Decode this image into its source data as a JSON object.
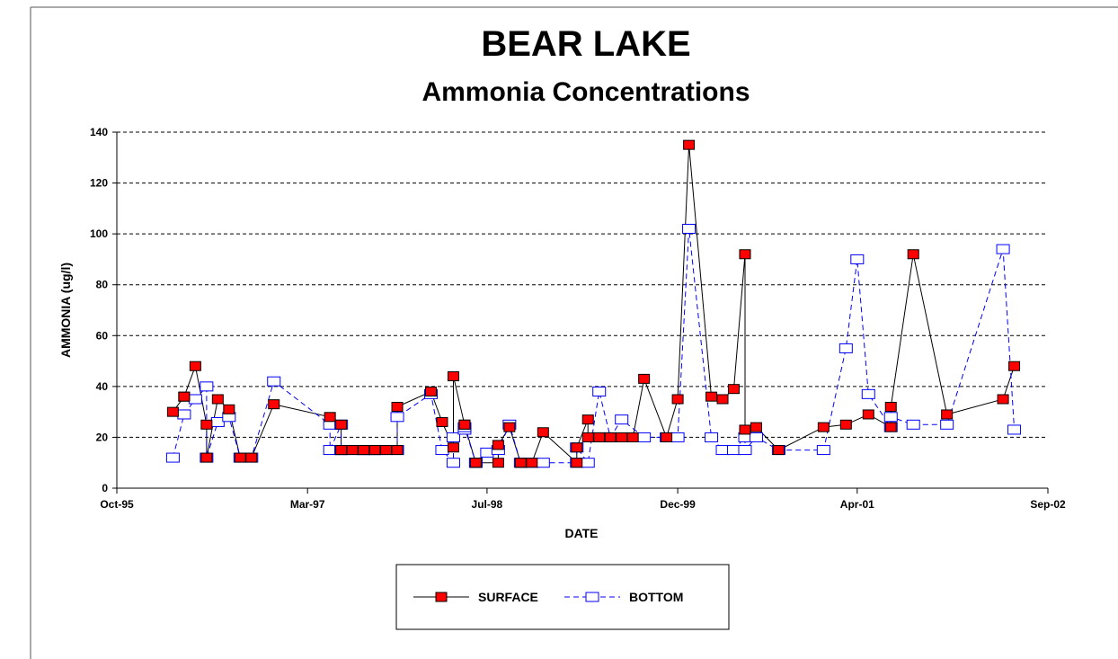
{
  "chart_data": {
    "type": "line",
    "title": "BEAR LAKE",
    "subtitle": "Ammonia Concentrations",
    "x_label": "DATE",
    "y_label": "AMMONIA (ug/l)",
    "xlim": [
      "1995-10",
      "2002-09"
    ],
    "xticks": [
      {
        "value": "1995-10",
        "label": "Oct-95"
      },
      {
        "value": "1997-03",
        "label": "Mar-97"
      },
      {
        "value": "1998-07",
        "label": "Jul-98"
      },
      {
        "value": "1999-12",
        "label": "Dec-99"
      },
      {
        "value": "2001-04",
        "label": "Apr-01"
      },
      {
        "value": "2002-09",
        "label": "Sep-02"
      }
    ],
    "ylim": [
      0,
      140
    ],
    "yticks": [
      0,
      20,
      40,
      60,
      80,
      100,
      120,
      140
    ],
    "grid": true,
    "legend": "bottom",
    "series": [
      {
        "name": "SURFACE",
        "color": "#ff0000",
        "style": "solid",
        "x": [
          "1996-03",
          "1996-04",
          "1996-04",
          "1996-05",
          "1996-06",
          "1996-06",
          "1996-07",
          "1996-08",
          "1996-09",
          "1996-10",
          "1996-12",
          "1997-05",
          "1997-06",
          "1997-06",
          "1997-06",
          "1997-07",
          "1997-08",
          "1997-08",
          "1997-09",
          "1997-09",
          "1997-10",
          "1997-11",
          "1997-11",
          "1998-02",
          "1998-03",
          "1998-04",
          "1998-04",
          "1998-05",
          "1998-05",
          "1998-06",
          "1998-06",
          "1998-08",
          "1998-08",
          "1998-09",
          "1998-10",
          "1998-10",
          "1998-11",
          "1998-12",
          "1999-03",
          "1999-03",
          "1999-04",
          "1999-04",
          "1999-05",
          "1999-05",
          "1999-06",
          "1999-07",
          "1999-08",
          "1999-09",
          "1999-11",
          "1999-12",
          "2000-01",
          "2000-03",
          "2000-04",
          "2000-05",
          "2000-06",
          "2000-06",
          "2000-07",
          "2000-09",
          "2001-01",
          "2001-03",
          "2001-05",
          "2001-07",
          "2001-07",
          "2001-09",
          "2001-12",
          "2002-05",
          "2002-06"
        ],
        "values": [
          30,
          36,
          36,
          48,
          25,
          12,
          35,
          31,
          12,
          12,
          33,
          28,
          25,
          15,
          15,
          15,
          15,
          15,
          15,
          15,
          15,
          15,
          32,
          38,
          26,
          16,
          44,
          25,
          25,
          10,
          10,
          10,
          17,
          24,
          10,
          10,
          10,
          22,
          10,
          16,
          27,
          20,
          20,
          20,
          20,
          20,
          20,
          43,
          20,
          35,
          135,
          36,
          35,
          39,
          92,
          23,
          24,
          15,
          24,
          25,
          29,
          24,
          32,
          92,
          29,
          35,
          48
        ]
      },
      {
        "name": "BOTTOM",
        "color": "#0000ff",
        "style": "dashed",
        "x": [
          "1996-03",
          "1996-04",
          "1996-05",
          "1996-06",
          "1996-06",
          "1996-07",
          "1996-08",
          "1996-09",
          "1996-10",
          "1996-12",
          "1997-05",
          "1997-05",
          "1997-06",
          "1997-06",
          "1997-06",
          "1997-07",
          "1997-08",
          "1997-08",
          "1997-09",
          "1997-09",
          "1997-10",
          "1997-11",
          "1997-11",
          "1998-02",
          "1998-03",
          "1998-04",
          "1998-04",
          "1998-05",
          "1998-05",
          "1998-06",
          "1998-06",
          "1998-07",
          "1998-08",
          "1998-09",
          "1998-10",
          "1998-11",
          "1998-12",
          "1999-03",
          "1999-03",
          "1999-04",
          "1999-05",
          "1999-06",
          "1999-07",
          "1999-09",
          "1999-11",
          "1999-12",
          "2000-01",
          "2000-03",
          "2000-04",
          "2000-05",
          "2000-06",
          "2000-06",
          "2000-07",
          "2000-09",
          "2001-01",
          "2001-03",
          "2001-04",
          "2001-05",
          "2001-07",
          "2001-07",
          "2001-09",
          "2001-12",
          "2002-05",
          "2002-06"
        ],
        "values": [
          12,
          29,
          35,
          40,
          12,
          26,
          28,
          12,
          12,
          42,
          25,
          15,
          25,
          15,
          15,
          15,
          15,
          15,
          15,
          15,
          15,
          15,
          28,
          37,
          15,
          10,
          20,
          23,
          24,
          10,
          10,
          14,
          15,
          25,
          10,
          10,
          10,
          10,
          16,
          10,
          38,
          20,
          27,
          20,
          20,
          20,
          102,
          20,
          15,
          15,
          20,
          15,
          20,
          15,
          15,
          55,
          90,
          37,
          24,
          28,
          25,
          25,
          94,
          23
        ]
      }
    ]
  }
}
